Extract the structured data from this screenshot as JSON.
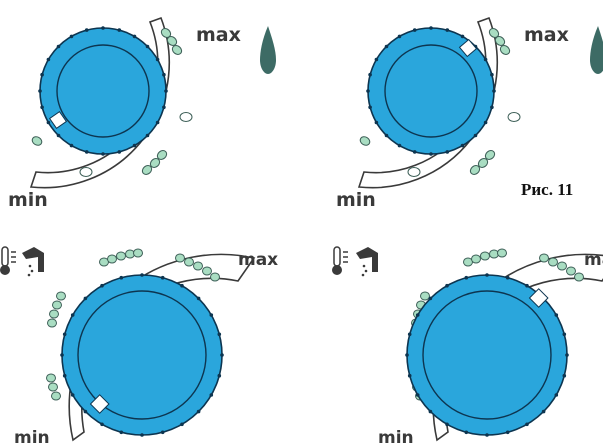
{
  "colors": {
    "knob_fill": "#2aa6dc",
    "knob_stroke": "#0d3550",
    "dot_fill": "#a9ddc2",
    "dot_stroke": "#3d5f57",
    "flame": "#3d6b65",
    "indicator": "#ffffff",
    "label": "#3a3a3a"
  },
  "labels": {
    "min": "min",
    "max": "max",
    "fig_label": "Рис. 11"
  },
  "icons": [
    "flame-icon",
    "thermometer-icon",
    "faucet-icon"
  ],
  "dials": [
    {
      "name": "heating-dial-min",
      "setting": "min"
    },
    {
      "name": "heating-dial-max",
      "setting": "max"
    },
    {
      "name": "water-dial-min",
      "setting": "min"
    },
    {
      "name": "water-dial-max",
      "setting": "max"
    }
  ]
}
